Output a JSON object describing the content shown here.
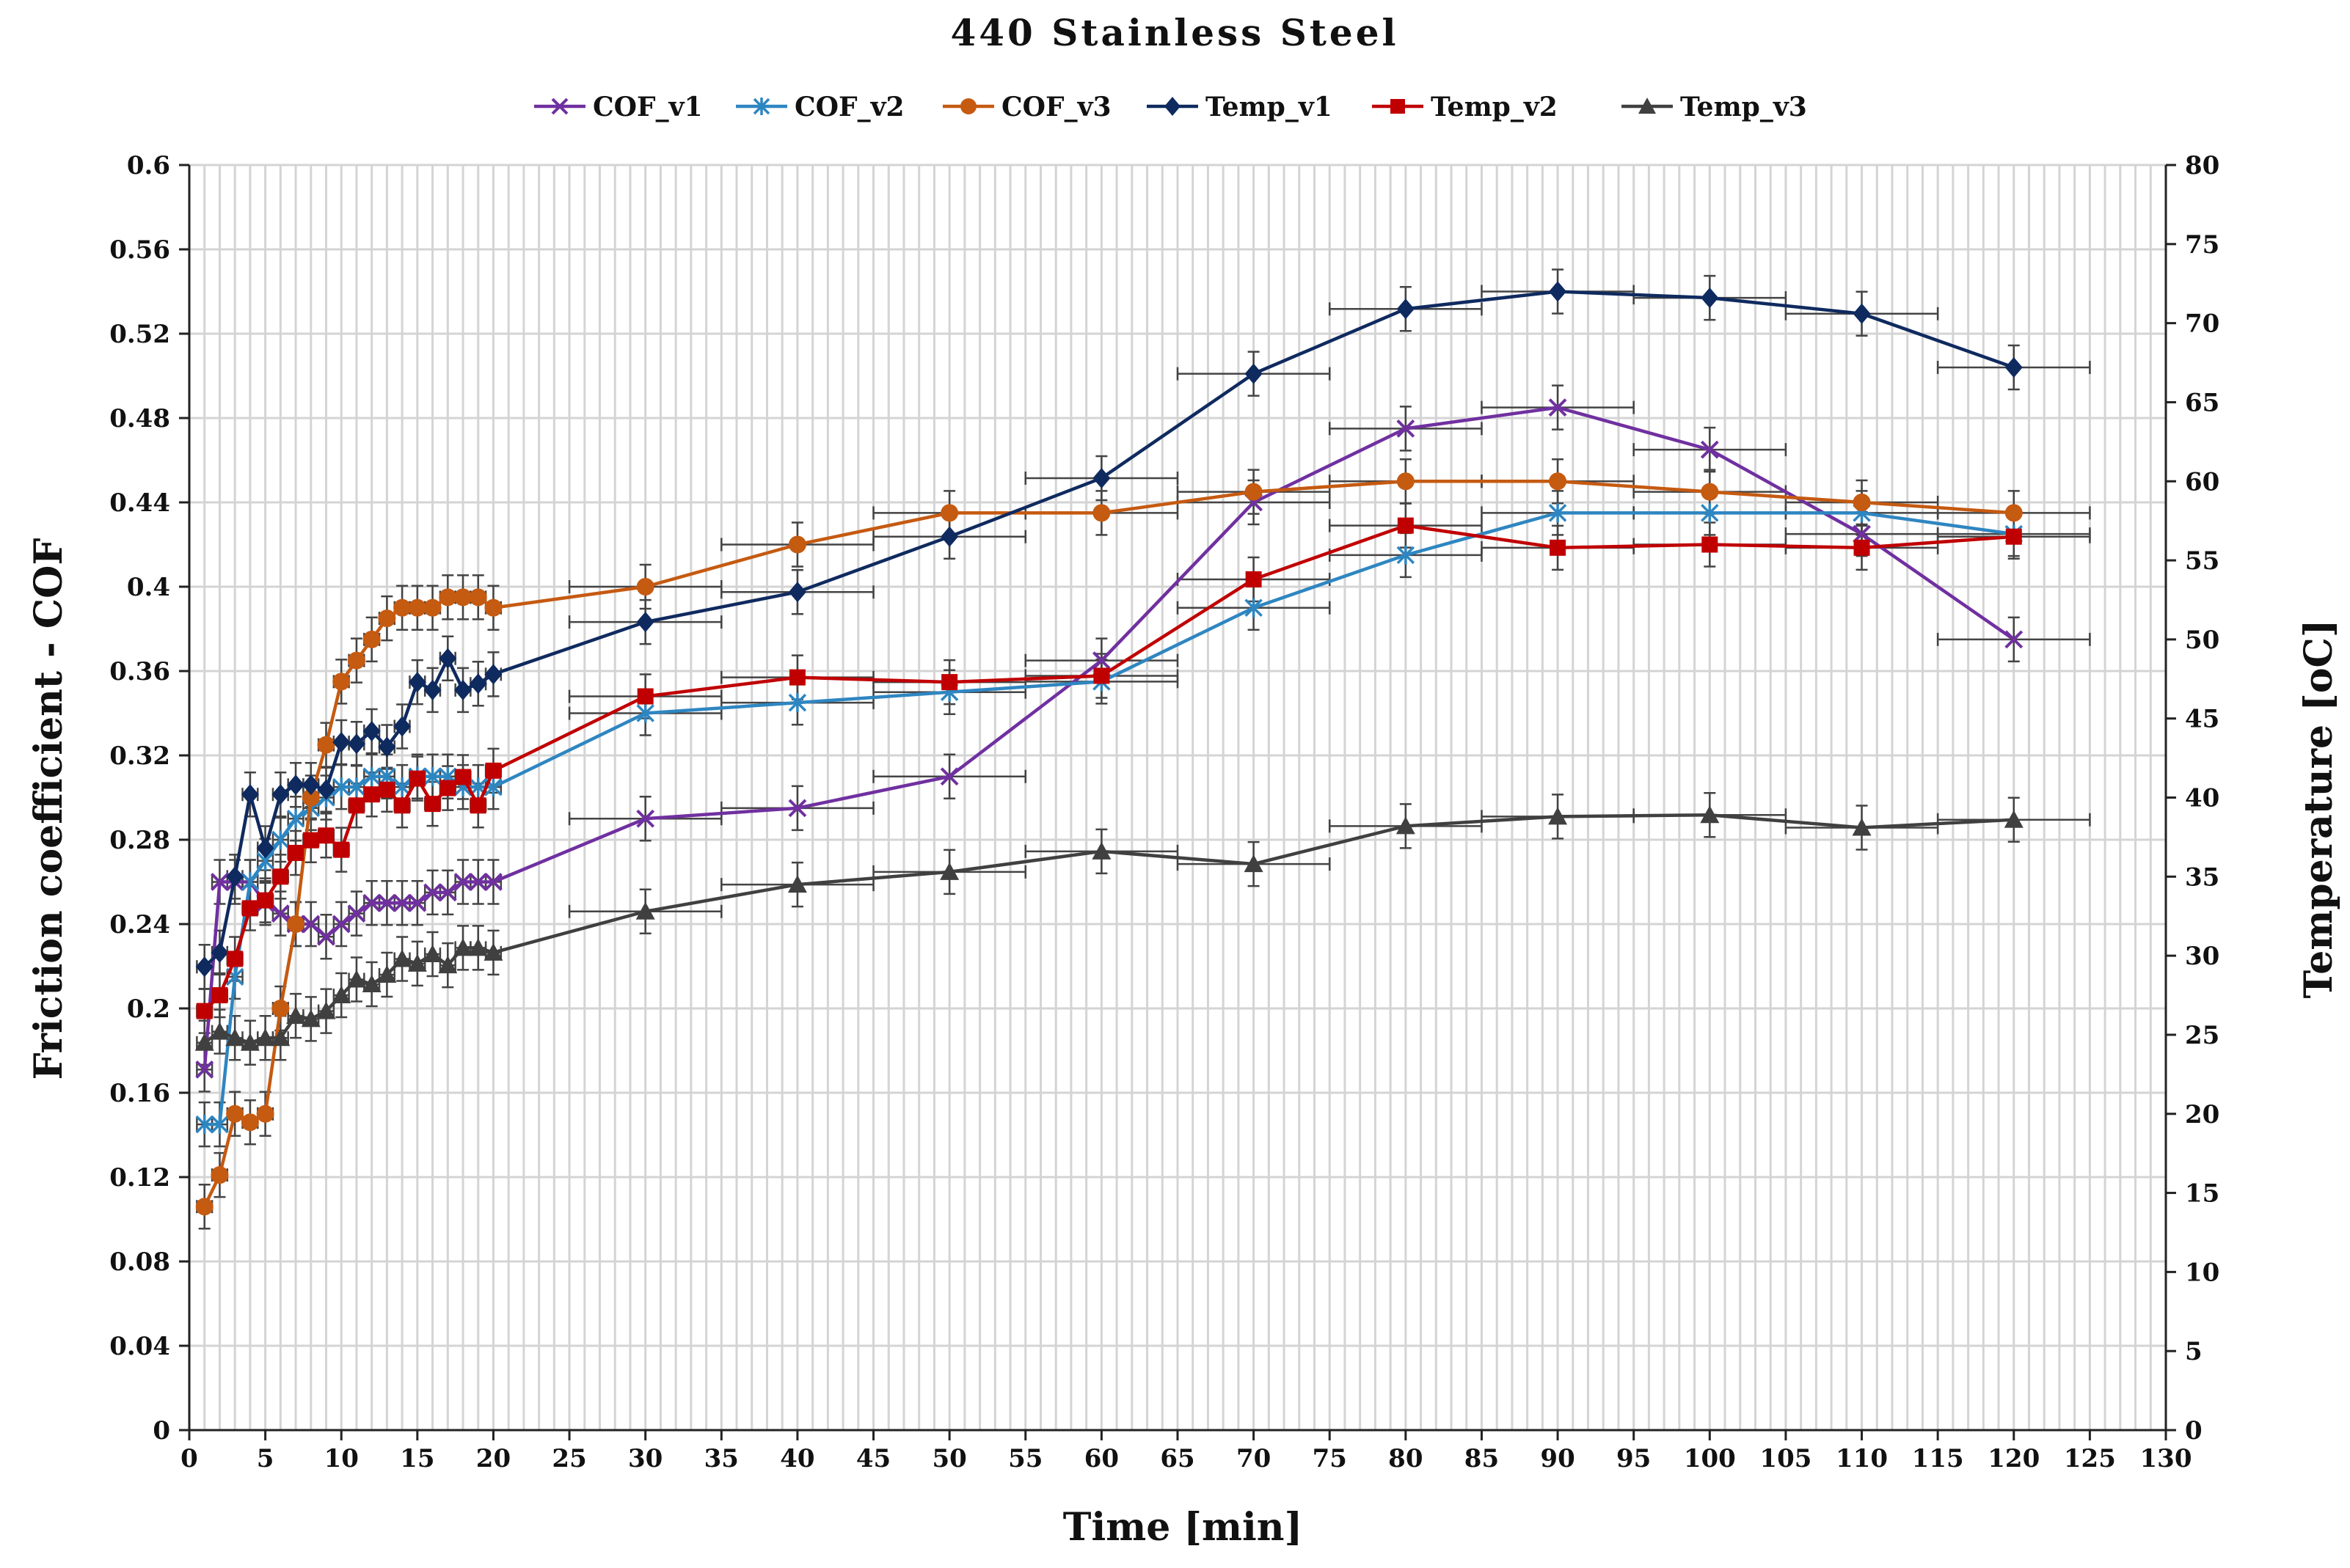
{
  "chart_data": {
    "type": "line",
    "title": "440 Stainless Steel",
    "xlabel": "Time [min]",
    "ylabel": "Friction coefficient - COF",
    "y2label": "Temperature [oC]",
    "xlim": [
      0,
      130
    ],
    "ylim": [
      0,
      0.6
    ],
    "y2lim": [
      0,
      80
    ],
    "x_ticks": [
      "0",
      "5",
      "10",
      "15",
      "20",
      "25",
      "30",
      "35",
      "40",
      "45",
      "50",
      "55",
      "60",
      "65",
      "70",
      "75",
      "80",
      "85",
      "90",
      "95",
      "100",
      "105",
      "110",
      "115",
      "120",
      "125",
      "130"
    ],
    "y_ticks": [
      "0",
      "0.04",
      "0.08",
      "0.12",
      "0.16",
      "0.2",
      "0.24",
      "0.28",
      "0.32",
      "0.36",
      "0.4",
      "0.44",
      "0.48",
      "0.52",
      "0.56",
      "0.6"
    ],
    "y2_ticks": [
      "0",
      "5",
      "10",
      "15",
      "20",
      "25",
      "30",
      "35",
      "40",
      "45",
      "50",
      "55",
      "60",
      "65",
      "70",
      "75",
      "80"
    ],
    "legend_position": "top",
    "series": [
      {
        "name": "COF_v1",
        "axis": "left",
        "color": "#7030A0",
        "marker": "x",
        "x": [
          1,
          2,
          3,
          4,
          5,
          6,
          7,
          8,
          9,
          10,
          11,
          12,
          13,
          14,
          15,
          16,
          17,
          18,
          19,
          20,
          30,
          40,
          50,
          60,
          70,
          80,
          90,
          100,
          110,
          120
        ],
        "y": [
          0.171,
          0.26,
          0.26,
          0.26,
          0.25,
          0.245,
          0.24,
          0.24,
          0.234,
          0.24,
          0.245,
          0.25,
          0.25,
          0.25,
          0.25,
          0.255,
          0.255,
          0.26,
          0.26,
          0.26,
          0.29,
          0.295,
          0.31,
          0.365,
          0.44,
          0.475,
          0.485,
          0.465,
          0.425,
          0.375
        ]
      },
      {
        "name": "COF_v2",
        "axis": "left",
        "color": "#2E86C1",
        "marker": "asterisk",
        "x": [
          1,
          2,
          3,
          4,
          5,
          6,
          7,
          8,
          9,
          10,
          11,
          12,
          13,
          14,
          15,
          16,
          17,
          18,
          19,
          20,
          30,
          40,
          50,
          60,
          70,
          80,
          90,
          100,
          110,
          120
        ],
        "y": [
          0.145,
          0.145,
          0.215,
          0.26,
          0.27,
          0.28,
          0.29,
          0.295,
          0.3,
          0.305,
          0.305,
          0.31,
          0.31,
          0.305,
          0.31,
          0.31,
          0.31,
          0.305,
          0.305,
          0.305,
          0.34,
          0.345,
          0.35,
          0.355,
          0.39,
          0.415,
          0.435,
          0.435,
          0.435,
          0.425
        ]
      },
      {
        "name": "COF_v3",
        "axis": "left",
        "color": "#C55A11",
        "marker": "circle",
        "x": [
          1,
          2,
          3,
          4,
          5,
          6,
          7,
          8,
          9,
          10,
          11,
          12,
          13,
          14,
          15,
          16,
          17,
          18,
          19,
          20,
          30,
          40,
          50,
          60,
          70,
          80,
          90,
          100,
          110,
          120
        ],
        "y": [
          0.106,
          0.121,
          0.15,
          0.146,
          0.15,
          0.2,
          0.24,
          0.3,
          0.325,
          0.355,
          0.365,
          0.375,
          0.385,
          0.39,
          0.39,
          0.39,
          0.395,
          0.395,
          0.395,
          0.39,
          0.4,
          0.42,
          0.435,
          0.435,
          0.445,
          0.45,
          0.45,
          0.445,
          0.44,
          0.435
        ]
      },
      {
        "name": "Temp_v1",
        "axis": "right",
        "color": "#0F2A5F",
        "marker": "diamond",
        "x": [
          1,
          2,
          3,
          4,
          5,
          6,
          7,
          8,
          9,
          10,
          11,
          12,
          13,
          14,
          15,
          16,
          17,
          18,
          19,
          20,
          30,
          40,
          50,
          60,
          70,
          80,
          90,
          100,
          110,
          120
        ],
        "y": [
          29.3,
          30.2,
          35,
          40.2,
          36.8,
          40.2,
          40.8,
          40.8,
          40.5,
          43.5,
          43.4,
          44.2,
          43.2,
          44.5,
          47.3,
          46.8,
          48.8,
          46.8,
          47.2,
          47.8,
          51.1,
          53,
          56.5,
          60.2,
          66.8,
          70.9,
          72,
          71.6,
          70.6,
          67.2
        ]
      },
      {
        "name": "Temp_v2",
        "axis": "right",
        "color": "#C00000",
        "marker": "square",
        "x": [
          1,
          2,
          3,
          4,
          5,
          6,
          7,
          8,
          9,
          10,
          11,
          12,
          13,
          14,
          15,
          16,
          17,
          18,
          19,
          20,
          30,
          40,
          50,
          60,
          70,
          80,
          90,
          100,
          110,
          120
        ],
        "y": [
          26.5,
          27.5,
          29.8,
          33,
          33.5,
          35,
          36.5,
          37.3,
          37.6,
          36.7,
          39.5,
          40.2,
          40.5,
          39.5,
          41.2,
          39.6,
          40.6,
          41.3,
          39.5,
          41.7,
          46.4,
          47.6,
          47.3,
          47.7,
          53.8,
          57.2,
          55.8,
          56,
          55.8,
          56.5
        ]
      },
      {
        "name": "Temp_v3",
        "axis": "right",
        "color": "#404040",
        "marker": "triangle",
        "x": [
          1,
          2,
          3,
          4,
          5,
          6,
          7,
          8,
          9,
          10,
          11,
          12,
          13,
          14,
          15,
          16,
          17,
          18,
          19,
          20,
          30,
          40,
          50,
          60,
          70,
          80,
          90,
          100,
          110,
          120
        ],
        "y": [
          24.5,
          25.2,
          24.8,
          24.5,
          24.8,
          24.8,
          26.2,
          26,
          26.5,
          27.5,
          28.5,
          28.2,
          28.8,
          29.8,
          29.5,
          30.1,
          29.4,
          30.5,
          30.5,
          30.2,
          32.8,
          34.5,
          35.3,
          36.6,
          35.8,
          38.2,
          38.8,
          38.9,
          38.1,
          38.6
        ]
      }
    ]
  }
}
